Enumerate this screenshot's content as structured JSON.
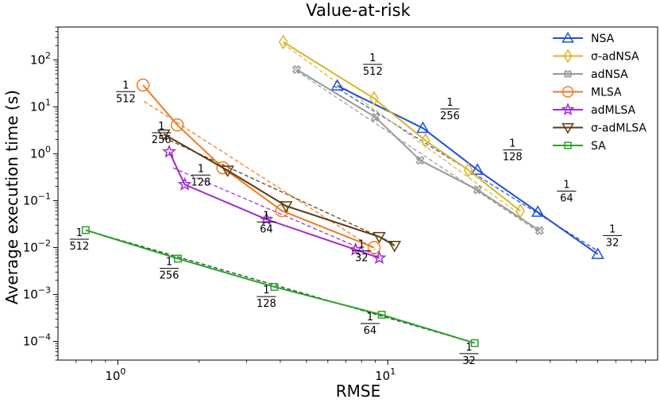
{
  "chart_data": {
    "type": "line",
    "title": "Value-at-risk",
    "xlabel": "RMSE",
    "ylabel": "Average execution time (s)",
    "xscale": "log",
    "yscale": "log",
    "xlim": [
      0.6,
      100
    ],
    "ylim": [
      4e-05,
      500
    ],
    "xticks": [
      {
        "value": 1,
        "base": "10",
        "exp": "0"
      },
      {
        "value": 10,
        "base": "10",
        "exp": "1"
      }
    ],
    "yticks": [
      {
        "value": 0.0001,
        "base": "10",
        "exp": "−4"
      },
      {
        "value": 0.001,
        "base": "10",
        "exp": "−3"
      },
      {
        "value": 0.01,
        "base": "10",
        "exp": "−2"
      },
      {
        "value": 0.1,
        "base": "10",
        "exp": "−1"
      },
      {
        "value": 1,
        "base": "10",
        "exp": "0"
      },
      {
        "value": 10,
        "base": "10",
        "exp": "1"
      },
      {
        "value": 100,
        "base": "10",
        "exp": "2"
      }
    ],
    "legend_position": "top-right",
    "series": [
      {
        "name": "NSA",
        "color": "#1f4fd8",
        "marker": "triangle-up",
        "x": [
          6.5,
          13.5,
          21.5,
          36,
          60
        ],
        "y": [
          28,
          3.5,
          0.45,
          0.057,
          0.0072
        ],
        "fit": {
          "x": [
            6.3,
            60
          ],
          "y": [
            28,
            0.0085
          ]
        },
        "slope_labels": [
          {
            "num": "1",
            "den": "512",
            "x": 8.8,
            "y": 80
          },
          {
            "num": "1",
            "den": "256",
            "x": 17,
            "y": 9
          },
          {
            "num": "1",
            "den": "128",
            "x": 29,
            "y": 1.2
          },
          {
            "num": "1",
            "den": "64",
            "x": 46,
            "y": 0.16
          },
          {
            "num": "1",
            "den": "32",
            "x": 68,
            "y": 0.018
          }
        ]
      },
      {
        "name": "σ-adNSA",
        "color": "#d9b52a",
        "marker": "diamond",
        "x": [
          4.1,
          8.9,
          13.8,
          19.9,
          31
        ],
        "y": [
          240,
          15,
          1.9,
          0.45,
          0.06
        ],
        "fit": {
          "x": [
            4.1,
            31
          ],
          "y": [
            220,
            0.05
          ]
        },
        "slope_labels": []
      },
      {
        "name": "adNSA",
        "color": "#999999",
        "marker": "x-thick",
        "x": [
          4.6,
          9,
          13.2,
          21.5,
          36.5
        ],
        "y": [
          62,
          6,
          0.72,
          0.17,
          0.023
        ],
        "fit": {
          "x": [
            4.6,
            36.5
          ],
          "y": [
            58,
            0.021
          ]
        },
        "slope_labels": []
      },
      {
        "name": "MLSA",
        "color": "#f07a1f",
        "marker": "circle",
        "x": [
          1.24,
          1.66,
          2.45,
          4.05,
          8.9
        ],
        "y": [
          29,
          4.1,
          0.5,
          0.061,
          0.01
        ],
        "fit": {
          "x": [
            1.25,
            9.0
          ],
          "y": [
            13,
            0.009
          ]
        },
        "slope_labels": [
          {
            "num": "1",
            "den": "512",
            "x": 1.07,
            "y": 21
          },
          {
            "num": "1",
            "den": "256",
            "x": 1.45,
            "y": 2.8
          },
          {
            "num": "1",
            "den": "128",
            "x": 2.03,
            "y": 0.35
          },
          {
            "num": "1",
            "den": "64",
            "x": 3.55,
            "y": 0.035
          },
          {
            "num": "1",
            "den": "32",
            "x": 8.0,
            "y": 0.0085
          }
        ]
      },
      {
        "name": "adMLSA",
        "color": "#a02bd6",
        "marker": "star",
        "x": [
          1.55,
          1.77,
          3.55,
          7.6,
          9.3
        ],
        "y": [
          1.1,
          0.22,
          0.04,
          0.009,
          0.006
        ],
        "fit": {
          "x": [
            1.6,
            9.3
          ],
          "y": [
            0.5,
            0.0065
          ]
        },
        "slope_labels": []
      },
      {
        "name": "σ-adMLSA",
        "color": "#5c3a12",
        "marker": "triangle-down",
        "x": [
          1.48,
          2.55,
          4.2,
          9.3,
          10.6
        ],
        "y": [
          2.6,
          0.44,
          0.077,
          0.017,
          0.011
        ],
        "fit": {
          "x": [
            1.48,
            10.6
          ],
          "y": [
            2.2,
            0.012
          ]
        },
        "slope_labels": []
      },
      {
        "name": "SA",
        "color": "#2ca02c",
        "marker": "square",
        "x": [
          0.76,
          1.67,
          3.8,
          9.5,
          21
        ],
        "y": [
          0.0235,
          0.0058,
          0.00145,
          0.00037,
          9.2e-05
        ],
        "fit": {
          "x": [
            0.76,
            21
          ],
          "y": [
            0.0235,
            9.2e-05
          ]
        },
        "slope_labels": [
          {
            "num": "1",
            "den": "512",
            "x": 0.72,
            "y": 0.015
          },
          {
            "num": "1",
            "den": "256",
            "x": 1.55,
            "y": 0.0036
          },
          {
            "num": "1",
            "den": "128",
            "x": 3.55,
            "y": 0.0009
          },
          {
            "num": "1",
            "den": "64",
            "x": 8.6,
            "y": 0.00024
          },
          {
            "num": "1",
            "den": "32",
            "x": 20,
            "y": 5.5e-05
          }
        ]
      }
    ]
  }
}
